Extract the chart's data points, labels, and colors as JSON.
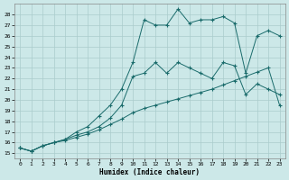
{
  "title": "",
  "xlabel": "Humidex (Indice chaleur)",
  "xlim": [
    -0.5,
    23.5
  ],
  "ylim": [
    14.5,
    29
  ],
  "yticks": [
    15,
    16,
    17,
    18,
    19,
    20,
    21,
    22,
    23,
    24,
    25,
    26,
    27,
    28
  ],
  "xticks": [
    0,
    1,
    2,
    3,
    4,
    5,
    6,
    7,
    8,
    9,
    10,
    11,
    12,
    13,
    14,
    15,
    16,
    17,
    18,
    19,
    20,
    21,
    22,
    23
  ],
  "bg_color": "#cce8e8",
  "line_color": "#1a6b6b",
  "grid_color": "#aacccc",
  "series1_x": [
    0,
    1,
    2,
    3,
    4,
    5,
    6,
    7,
    8,
    9,
    10,
    11,
    12,
    13,
    14,
    15,
    16,
    17,
    18,
    19,
    20,
    21,
    22,
    23
  ],
  "series1_y": [
    15.5,
    15.2,
    15.7,
    16.0,
    16.2,
    16.5,
    16.8,
    17.2,
    17.7,
    18.2,
    18.8,
    19.2,
    19.5,
    19.8,
    20.1,
    20.4,
    20.7,
    21.0,
    21.4,
    21.8,
    22.2,
    22.6,
    23.0,
    19.5
  ],
  "series2_x": [
    0,
    1,
    2,
    3,
    4,
    5,
    6,
    7,
    8,
    9,
    10,
    11,
    12,
    13,
    14,
    15,
    16,
    17,
    18,
    19,
    20,
    21,
    22,
    23
  ],
  "series2_y": [
    15.5,
    15.2,
    15.7,
    16.0,
    16.3,
    16.7,
    17.0,
    17.5,
    18.3,
    19.5,
    22.2,
    22.5,
    23.5,
    22.5,
    23.5,
    23.0,
    22.5,
    22.0,
    23.5,
    23.2,
    20.5,
    21.5,
    21.0,
    20.5
  ],
  "series3_x": [
    0,
    1,
    2,
    3,
    4,
    5,
    6,
    7,
    8,
    9,
    10,
    11,
    12,
    13,
    14,
    15,
    16,
    17,
    18,
    19,
    20,
    21,
    22,
    23
  ],
  "series3_y": [
    15.5,
    15.2,
    15.7,
    16.0,
    16.3,
    17.0,
    17.5,
    18.5,
    19.5,
    21.0,
    23.5,
    27.5,
    27.0,
    27.0,
    28.5,
    27.2,
    27.5,
    27.5,
    27.8,
    27.2,
    22.5,
    26.0,
    26.5,
    26.0
  ]
}
